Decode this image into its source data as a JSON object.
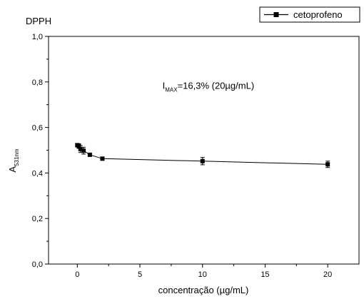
{
  "chart_data": {
    "type": "line",
    "title": "DPPH",
    "xlabel": "concentração (µg/mL)",
    "ylabel": {
      "main": "A",
      "sub": "531nm"
    },
    "xlim": [
      -2.3,
      22.5
    ],
    "ylim": [
      0.0,
      1.0
    ],
    "x_ticks": [
      0,
      5,
      10,
      15,
      20
    ],
    "x_tick_labels": [
      "0",
      "5",
      "10",
      "15",
      "20"
    ],
    "y_ticks": [
      0.0,
      0.2,
      0.4,
      0.6,
      0.8,
      1.0
    ],
    "y_tick_labels": [
      "0,0",
      "0,2",
      "0,4",
      "0,6",
      "0,8",
      "1,0"
    ],
    "legend_position": "top-right",
    "series": [
      {
        "name": "cetoprofeno",
        "color": "#000000",
        "marker": "square",
        "x": [
          0,
          0.125,
          0.25,
          0.5,
          1,
          2,
          10,
          20
        ],
        "y": [
          0.522,
          0.518,
          0.505,
          0.498,
          0.48,
          0.463,
          0.452,
          0.438
        ],
        "error": [
          0.008,
          0.01,
          0.015,
          0.015,
          0.006,
          0.005,
          0.016,
          0.014
        ]
      }
    ],
    "annotation": {
      "text_main": "I",
      "text_sub": "MAX",
      "text_rest": "=16,3% (20µg/mL)",
      "x": 6.8,
      "y": 0.77
    }
  }
}
